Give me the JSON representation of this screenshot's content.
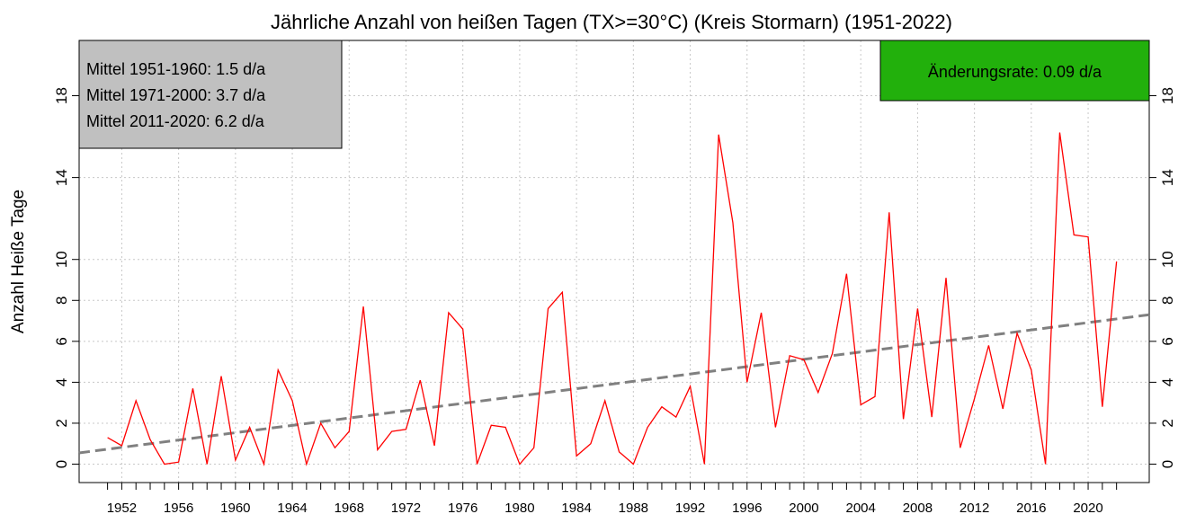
{
  "chart_data": {
    "type": "line",
    "title": "Jährliche Anzahl von heißen Tagen (TX>=30°C) (Kreis Stormarn) (1951-2022)",
    "y_label": "Anzahl Heiße Tage",
    "x": [
      1951,
      1952,
      1953,
      1954,
      1955,
      1956,
      1957,
      1958,
      1959,
      1960,
      1961,
      1962,
      1963,
      1964,
      1965,
      1966,
      1967,
      1968,
      1969,
      1970,
      1971,
      1972,
      1973,
      1974,
      1975,
      1976,
      1977,
      1978,
      1979,
      1980,
      1981,
      1982,
      1983,
      1984,
      1985,
      1986,
      1987,
      1988,
      1989,
      1990,
      1991,
      1992,
      1993,
      1994,
      1995,
      1996,
      1997,
      1998,
      1999,
      2000,
      2001,
      2002,
      2003,
      2004,
      2005,
      2006,
      2007,
      2008,
      2009,
      2010,
      2011,
      2012,
      2013,
      2014,
      2015,
      2016,
      2017,
      2018,
      2019,
      2020,
      2021,
      2022
    ],
    "series": [
      {
        "color": "#ff0000",
        "values": [
          1.3,
          0.9,
          3.1,
          1.2,
          0.0,
          0.1,
          3.7,
          0.0,
          4.3,
          0.2,
          1.8,
          0.0,
          4.6,
          3.1,
          0.0,
          2.0,
          0.8,
          1.6,
          7.7,
          0.7,
          1.6,
          1.7,
          4.1,
          0.9,
          7.4,
          6.6,
          0.0,
          1.9,
          1.8,
          0.0,
          0.8,
          7.6,
          8.4,
          0.4,
          1.0,
          3.1,
          0.6,
          0.0,
          1.8,
          2.8,
          2.3,
          3.8,
          0.0,
          16.1,
          11.8,
          4.0,
          7.4,
          1.8,
          5.3,
          5.1,
          3.5,
          5.4,
          9.3,
          2.9,
          3.3,
          12.3,
          2.2,
          7.6,
          2.3,
          9.1,
          0.8,
          3.2,
          5.8,
          2.7,
          6.4,
          4.6,
          0.0,
          16.2,
          11.2,
          11.1,
          2.8,
          9.9
        ]
      }
    ],
    "trend": {
      "color": "#808080",
      "x": [
        1949,
        2024.3
      ],
      "values": [
        0.55,
        7.3
      ]
    },
    "annotations": [
      "Mittel 1951-1960: 1.5 d/a",
      "Mittel 1971-2000: 3.7 d/a",
      "Mittel 2011-2020: 6.2 d/a"
    ],
    "rate_annotation": {
      "text": "Änderungsrate: 0.09 d/a",
      "color": "#22b00c"
    },
    "xlim": [
      1949,
      2024.3
    ],
    "ylim": [
      -0.9,
      20.7
    ],
    "xticks": [
      1952,
      1956,
      1960,
      1964,
      1968,
      1972,
      1976,
      1980,
      1984,
      1988,
      1992,
      1996,
      2000,
      2004,
      2008,
      2012,
      2016,
      2020
    ],
    "yticks": [
      0,
      2,
      4,
      6,
      8,
      10,
      14,
      18
    ],
    "grid": true
  }
}
